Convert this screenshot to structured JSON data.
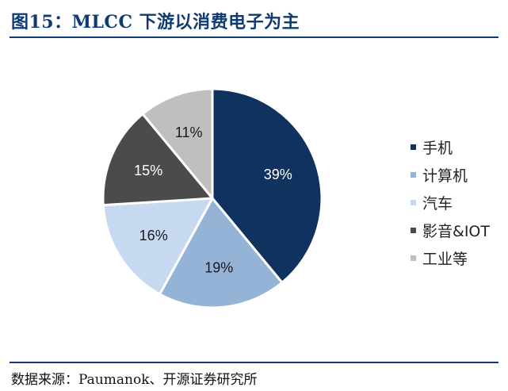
{
  "figure": {
    "title": "图15：MLCC 下游以消费电子为主",
    "source": "数据来源：Paumanok、开源证券研究所"
  },
  "chart_data": {
    "type": "pie",
    "slices": [
      {
        "name": "手机",
        "value": 39,
        "label": "39%",
        "color": "#0f335e",
        "label_color": "#ffffff"
      },
      {
        "name": "计算机",
        "value": 19,
        "label": "19%",
        "color": "#95b3d7",
        "label_color": "#1a1a1a"
      },
      {
        "name": "汽车",
        "value": 16,
        "label": "16%",
        "color": "#c6d9f0",
        "label_color": "#1a1a1a"
      },
      {
        "name": "影音&IOT",
        "value": 15,
        "label": "15%",
        "color": "#4b4b4b",
        "label_color": "#ffffff"
      },
      {
        "name": "工业等",
        "value": 11,
        "label": "11%",
        "color": "#bfbfbf",
        "label_color": "#1a1a1a"
      }
    ],
    "start": "12 o'clock",
    "direction": "clockwise",
    "legend_position": "right"
  }
}
